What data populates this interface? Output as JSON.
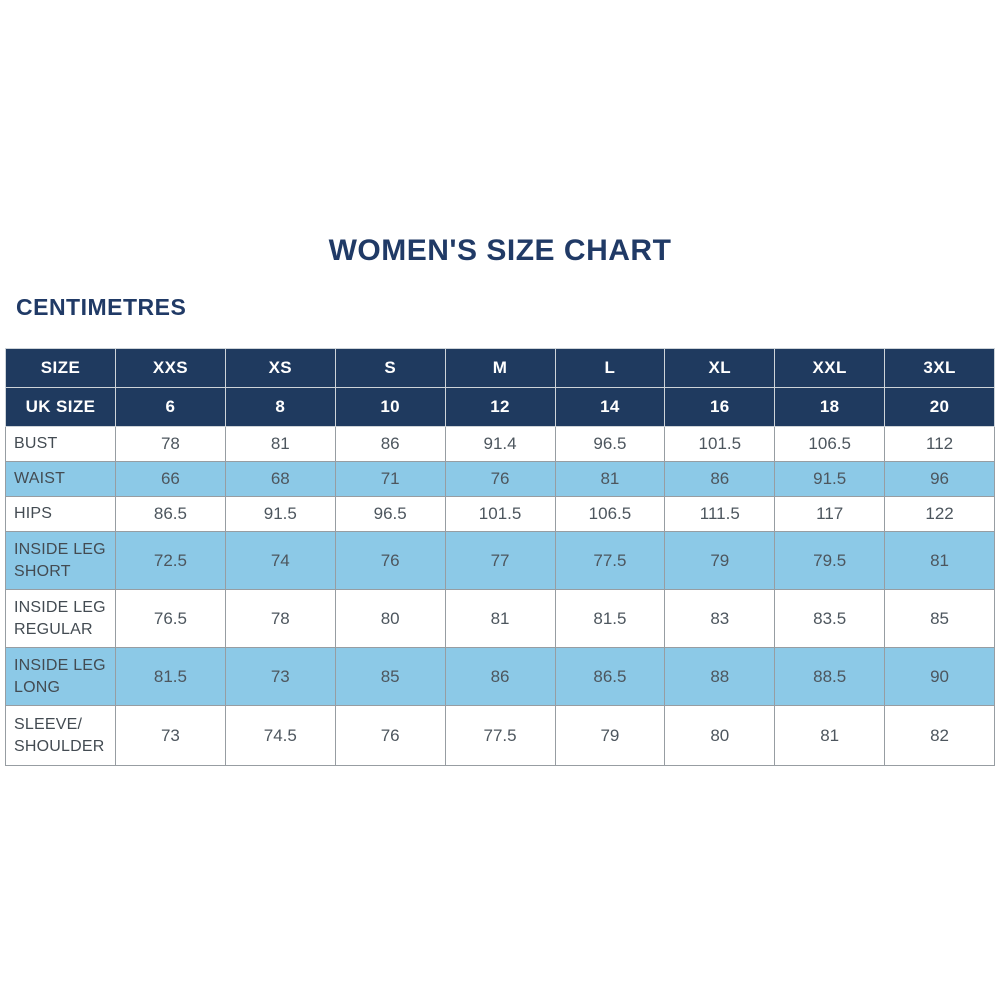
{
  "page": {
    "title": "WOMEN'S SIZE CHART",
    "unit_label": "CENTIMETRES"
  },
  "colors": {
    "navy_header": "#1f3a5f",
    "title_navy": "#203a66",
    "row_blue": "#8cc9e7",
    "row_white": "#ffffff",
    "cell_text": "#4d565e",
    "border_gray": "#979da2"
  },
  "chart_data": {
    "type": "table",
    "title": "WOMEN'S SIZE CHART",
    "unit": "CENTIMETRES",
    "columns": [
      "SIZE",
      "XXS",
      "XS",
      "S",
      "M",
      "L",
      "XL",
      "XXL",
      "3XL"
    ],
    "uk_row": {
      "label": "UK SIZE",
      "values": [
        "6",
        "8",
        "10",
        "12",
        "14",
        "16",
        "18",
        "20"
      ]
    },
    "rows": [
      {
        "label": "BUST",
        "values": [
          "78",
          "81",
          "86",
          "91.4",
          "96.5",
          "101.5",
          "106.5",
          "112"
        ]
      },
      {
        "label": "WAIST",
        "values": [
          "66",
          "68",
          "71",
          "76",
          "81",
          "86",
          "91.5",
          "96"
        ]
      },
      {
        "label": "HIPS",
        "values": [
          "86.5",
          "91.5",
          "96.5",
          "101.5",
          "106.5",
          "111.5",
          "117",
          "122"
        ]
      },
      {
        "label": "INSIDE LEG SHORT",
        "values": [
          "72.5",
          "74",
          "76",
          "77",
          "77.5",
          "79",
          "79.5",
          "81"
        ]
      },
      {
        "label": "INSIDE LEG REGULAR",
        "values": [
          "76.5",
          "78",
          "80",
          "81",
          "81.5",
          "83",
          "83.5",
          "85"
        ]
      },
      {
        "label": "INSIDE LEG LONG",
        "values": [
          "81.5",
          "73",
          "85",
          "86",
          "86.5",
          "88",
          "88.5",
          "90"
        ]
      },
      {
        "label": "SLEEVE/ SHOULDER",
        "values": [
          "73",
          "74.5",
          "76",
          "77.5",
          "79",
          "80",
          "81",
          "82"
        ]
      }
    ]
  }
}
